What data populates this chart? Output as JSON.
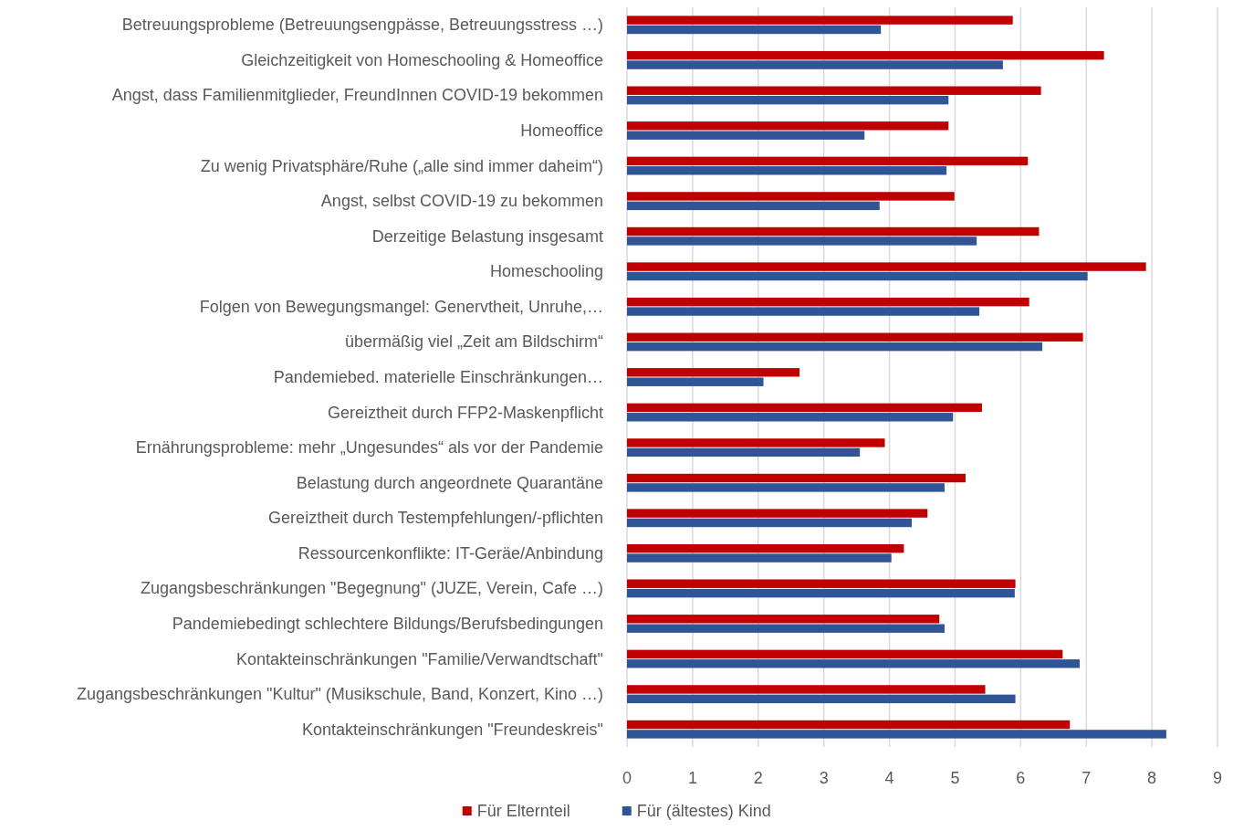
{
  "chart_data": {
    "type": "bar",
    "orientation": "horizontal",
    "categories": [
      "Betreuungsprobleme (Betreuungsengpässe, Betreuungsstress …)",
      "Gleichzeitigkeit von Homeschooling & Homeoffice",
      "Angst, dass Familienmitglieder, FreundInnen COVID-19 bekommen",
      "Homeoffice",
      "Zu wenig Privatsphäre/Ruhe („alle sind immer daheim“)",
      "Angst, selbst COVID-19 zu bekommen",
      "Derzeitige Belastung insgesamt",
      "Homeschooling",
      "Folgen von Bewegungsmangel: Genervtheit, Unruhe,…",
      "übermäßig viel „Zeit am Bildschirm“",
      "Pandemiebed. materielle Einschränkungen…",
      "Gereiztheit durch FFP2-Maskenpflicht",
      "Ernährungsprobleme: mehr „Ungesundes“ als vor der Pandemie",
      "Belastung durch angeordnete Quarantäne",
      "Gereiztheit durch Testempfehlungen/-pflichten",
      "Ressourcenkonflikte: IT-Geräe/Anbindung",
      "Zugangsbeschränkungen \"Begegnung\" (JUZE, Verein, Cafe  …)",
      "Pandemiebedingt schlechtere Bildungs/Berufsbedingungen",
      "Kontakteinschränkungen \"Familie/Verwandtschaft\"",
      "Zugangsbeschränkungen \"Kultur\" (Musikschule, Band, Konzert, Kino …)",
      "Kontakteinschränkungen \"Freundeskreis\""
    ],
    "series": [
      {
        "name": "Für Elternteil",
        "color": "#c00000",
        "values": [
          5.88,
          7.27,
          6.31,
          4.9,
          6.11,
          4.99,
          6.28,
          7.91,
          6.13,
          6.95,
          2.63,
          5.41,
          3.93,
          5.16,
          4.58,
          4.22,
          5.92,
          4.76,
          6.64,
          5.46,
          6.75
        ]
      },
      {
        "name": "Für (ältestes) Kind",
        "color": "#2f5597",
        "values": [
          3.87,
          5.73,
          4.9,
          3.62,
          4.87,
          3.85,
          5.33,
          7.02,
          5.37,
          6.33,
          2.08,
          4.97,
          3.55,
          4.84,
          4.34,
          4.03,
          5.91,
          4.84,
          6.9,
          5.92,
          8.22
        ]
      }
    ],
    "xlim": [
      0,
      9
    ],
    "xticks": [
      0,
      1,
      2,
      3,
      4,
      5,
      6,
      7,
      8,
      9
    ],
    "grid": "x",
    "legend": "bottom"
  }
}
